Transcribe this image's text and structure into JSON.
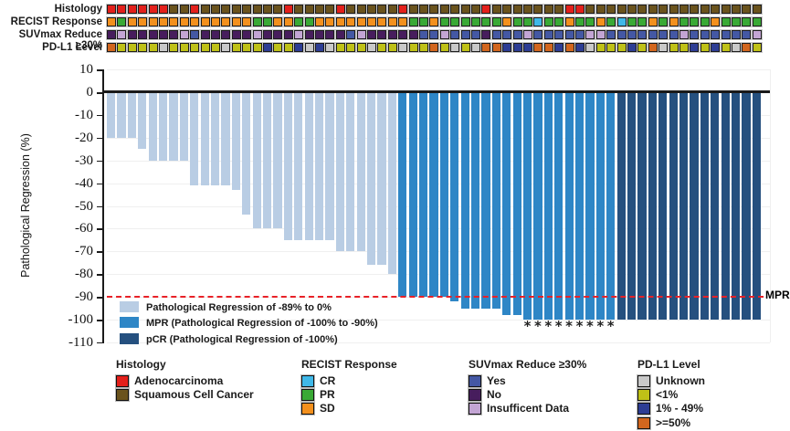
{
  "chart_data": {
    "type": "bar",
    "title": "",
    "ylabel": "Pathological Regression (%)",
    "ylim": [
      -110,
      10
    ],
    "yticks": [
      10,
      0,
      -10,
      -20,
      -30,
      -40,
      -50,
      -60,
      -70,
      -80,
      -90,
      -100,
      -110
    ],
    "grid": true,
    "values": [
      -20,
      -20,
      -20,
      -25,
      -30,
      -30,
      -30,
      -30,
      -41,
      -41,
      -41,
      -41,
      -43,
      -54,
      -60,
      -60,
      -60,
      -65,
      -65,
      -65,
      -65,
      -65,
      -70,
      -70,
      -70,
      -76,
      -76,
      -80,
      -90,
      -90,
      -90,
      -90,
      -90,
      -92,
      -95,
      -95,
      -95,
      -95,
      -98,
      -98,
      -100,
      -100,
      -100,
      -100,
      -100,
      -100,
      -100,
      -100,
      -100,
      -100,
      -100,
      -100,
      -100,
      -100,
      -100,
      -100,
      -100,
      -100,
      -100,
      -100,
      -100,
      -100,
      -100
    ],
    "group_spans": [
      {
        "group": "std",
        "count": 28
      },
      {
        "group": "mpr",
        "count": 21
      },
      {
        "group": "pcr",
        "count": 14
      }
    ],
    "group_colors": {
      "std": "#b9cde4",
      "mpr": "#2e86c6",
      "pcr": "#25507f"
    },
    "asterisk_indices": [
      41,
      42,
      43,
      44,
      45,
      46,
      47,
      48,
      49
    ],
    "asterisk_glyph": "*",
    "mpr_line": {
      "value": -90,
      "label": "MPR",
      "color": "#e82127",
      "style": "dashed"
    }
  },
  "plot_legend": [
    {
      "label": "Pathological Regression of -89% to 0%",
      "color": "#b9cde4"
    },
    {
      "label": "MPR (Pathological Regression of -100% to -90%)",
      "color": "#2e86c6"
    },
    {
      "label": "pCR (Pathological Regression of -100%)",
      "color": "#25507f"
    }
  ],
  "tracks": {
    "rows": [
      {
        "label": "Histology",
        "palette": {
          "A": "#e3201b",
          "S": "#6a531d"
        },
        "cells": [
          "A",
          "A",
          "A",
          "A",
          "A",
          "A",
          "S",
          "S",
          "A",
          "S",
          "S",
          "S",
          "S",
          "S",
          "S",
          "S",
          "S",
          "A",
          "S",
          "S",
          "S",
          "S",
          "A",
          "S",
          "S",
          "S",
          "S",
          "S",
          "A",
          "S",
          "S",
          "S",
          "S",
          "S",
          "S",
          "S",
          "A",
          "S",
          "S",
          "S",
          "S",
          "S",
          "S",
          "S",
          "A",
          "A",
          "S",
          "S",
          "S",
          "S",
          "S",
          "S",
          "S",
          "S",
          "S",
          "S",
          "S",
          "S",
          "S",
          "S",
          "S",
          "S",
          "S"
        ]
      },
      {
        "label": "RECIST Response",
        "palette": {
          "CR": "#3fb8e8",
          "PR": "#39a935",
          "SD": "#f3901d"
        },
        "cells": [
          "SD",
          "PR",
          "SD",
          "SD",
          "SD",
          "SD",
          "SD",
          "SD",
          "SD",
          "SD",
          "SD",
          "SD",
          "SD",
          "SD",
          "PR",
          "PR",
          "SD",
          "SD",
          "PR",
          "PR",
          "SD",
          "SD",
          "SD",
          "SD",
          "SD",
          "SD",
          "SD",
          "SD",
          "SD",
          "PR",
          "PR",
          "SD",
          "PR",
          "PR",
          "PR",
          "PR",
          "PR",
          "PR",
          "SD",
          "PR",
          "PR",
          "CR",
          "PR",
          "PR",
          "SD",
          "PR",
          "PR",
          "SD",
          "PR",
          "CR",
          "PR",
          "PR",
          "SD",
          "PR",
          "SD",
          "PR",
          "PR",
          "PR",
          "SD",
          "PR",
          "PR",
          "PR",
          "PR"
        ]
      },
      {
        "label": "SUVmax Reduce ≥30%",
        "palette": {
          "Y": "#4458a4",
          "N": "#471d5d",
          "I": "#c3a5d4"
        },
        "cells": [
          "N",
          "I",
          "N",
          "N",
          "N",
          "N",
          "N",
          "I",
          "Y",
          "N",
          "N",
          "N",
          "N",
          "N",
          "I",
          "N",
          "N",
          "N",
          "I",
          "N",
          "N",
          "N",
          "N",
          "Y",
          "I",
          "N",
          "N",
          "N",
          "N",
          "N",
          "Y",
          "Y",
          "I",
          "Y",
          "Y",
          "Y",
          "N",
          "Y",
          "Y",
          "Y",
          "I",
          "Y",
          "Y",
          "Y",
          "Y",
          "Y",
          "I",
          "I",
          "Y",
          "Y",
          "Y",
          "Y",
          "Y",
          "Y",
          "Y",
          "I",
          "Y",
          "Y",
          "Y",
          "Y",
          "Y",
          "Y",
          "I"
        ]
      },
      {
        "label": "PD-L1 Level",
        "palette": {
          "U": "#c9c9c9",
          "L": "#bfc117",
          "B": "#2d3d94",
          "H": "#d2661e"
        },
        "cells": [
          "H",
          "L",
          "L",
          "L",
          "L",
          "U",
          "L",
          "L",
          "L",
          "L",
          "L",
          "U",
          "L",
          "L",
          "L",
          "B",
          "L",
          "L",
          "B",
          "U",
          "B",
          "U",
          "L",
          "L",
          "L",
          "U",
          "L",
          "L",
          "U",
          "L",
          "L",
          "H",
          "L",
          "U",
          "L",
          "U",
          "H",
          "H",
          "B",
          "B",
          "B",
          "H",
          "H",
          "B",
          "H",
          "B",
          "U",
          "L",
          "L",
          "L",
          "B",
          "L",
          "H",
          "U",
          "L",
          "L",
          "B",
          "L",
          "B",
          "L",
          "U",
          "H",
          "L"
        ]
      }
    ]
  },
  "bottom_legends": [
    {
      "title": "Histology",
      "items": [
        {
          "label": "Adenocarcinoma",
          "color": "#e3201b"
        },
        {
          "label": "Squamous Cell Cancer",
          "color": "#6a531d"
        }
      ]
    },
    {
      "title": "RECIST Response",
      "items": [
        {
          "label": "CR",
          "color": "#3fb8e8"
        },
        {
          "label": "PR",
          "color": "#39a935"
        },
        {
          "label": "SD",
          "color": "#f3901d"
        }
      ]
    },
    {
      "title": "SUVmax Reduce ≥30%",
      "items": [
        {
          "label": "Yes",
          "color": "#4458a4"
        },
        {
          "label": "No",
          "color": "#471d5d"
        },
        {
          "label": "Insufficent Data",
          "color": "#c3a5d4"
        }
      ]
    },
    {
      "title": "PD-L1 Level",
      "items": [
        {
          "label": "Unknown",
          "color": "#c9c9c9"
        },
        {
          "label": "<1%",
          "color": "#bfc117"
        },
        {
          "label": "1% - 49%",
          "color": "#2d3d94"
        },
        {
          "label": ">=50%",
          "color": "#d2661e"
        }
      ]
    }
  ]
}
